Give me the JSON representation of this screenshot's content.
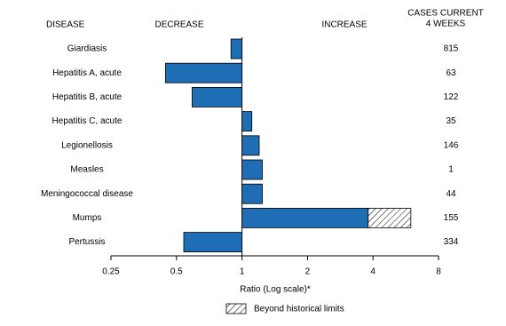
{
  "chart_data": {
    "type": "ratio-bar",
    "header_disease": "DISEASE",
    "header_decrease": "DECREASE",
    "header_increase": "INCREASE",
    "header_cases": [
      "CASES CURRENT",
      "4 WEEKS"
    ],
    "categories": [
      "Giardiasis",
      "Hepatitis A, acute",
      "Hepatitis B, acute",
      "Hepatitis C, acute",
      "Legionellosis",
      "Measles",
      "Meningococcal disease",
      "Mumps",
      "Pertussis"
    ],
    "values": [
      0.89,
      0.445,
      0.59,
      1.11,
      1.2,
      1.24,
      1.24,
      5.97,
      0.54
    ],
    "historical_limits": [
      null,
      null,
      null,
      null,
      null,
      null,
      null,
      3.8,
      null
    ],
    "cases": [
      815,
      63,
      122,
      35,
      146,
      1,
      44,
      155,
      334
    ],
    "color": "#1f6db5",
    "log_scale": true,
    "xlim": [
      0.25,
      8
    ],
    "xticks": [
      0.25,
      0.5,
      1,
      2,
      4,
      8
    ],
    "xlabel": "Ratio (Log scale)*",
    "legend": "Beyond historical limits"
  }
}
